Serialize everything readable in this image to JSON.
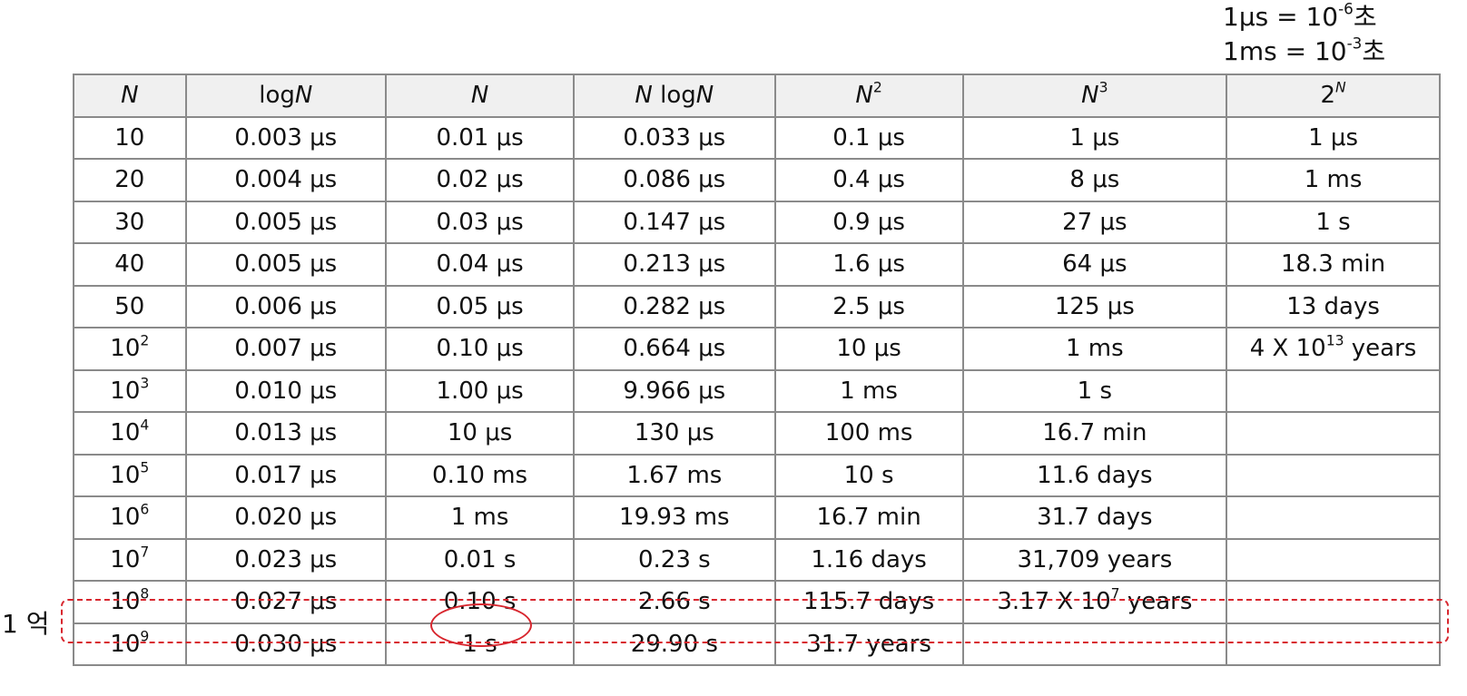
{
  "legend": {
    "lines": [
      {
        "prefix": "1μs = 10",
        "exp": "-6",
        "suffix": "초"
      },
      {
        "prefix": "1ms = 10",
        "exp": "-3",
        "suffix": "초"
      }
    ]
  },
  "table": {
    "headers": [
      {
        "base": "N",
        "exp": ""
      },
      {
        "pre": "log",
        "base": "N",
        "exp": ""
      },
      {
        "base": "N",
        "exp": ""
      },
      {
        "base": "N",
        "post": " log",
        "base2": "N",
        "exp": ""
      },
      {
        "base": "N",
        "exp": "2"
      },
      {
        "base": "N",
        "exp": "3"
      },
      {
        "pre": "2",
        "exp_italic": "N"
      }
    ],
    "rows": [
      {
        "n": {
          "base": "10",
          "exp": ""
        },
        "cells": [
          "0.003 μs",
          "0.01 μs",
          "0.033 μs",
          "0.1 μs",
          "1 μs",
          "1 μs"
        ]
      },
      {
        "n": {
          "base": "20",
          "exp": ""
        },
        "cells": [
          "0.004 μs",
          "0.02 μs",
          "0.086 μs",
          "0.4 μs",
          "8 μs",
          "1 ms"
        ]
      },
      {
        "n": {
          "base": "30",
          "exp": ""
        },
        "cells": [
          "0.005 μs",
          "0.03 μs",
          "0.147 μs",
          "0.9 μs",
          "27 μs",
          "1 s"
        ]
      },
      {
        "n": {
          "base": "40",
          "exp": ""
        },
        "cells": [
          "0.005 μs",
          "0.04 μs",
          "0.213 μs",
          "1.6 μs",
          "64 μs",
          "18.3 min"
        ]
      },
      {
        "n": {
          "base": "50",
          "exp": ""
        },
        "cells": [
          "0.006 μs",
          "0.05 μs",
          "0.282 μs",
          "2.5 μs",
          "125 μs",
          "13 days"
        ]
      },
      {
        "n": {
          "base": "10",
          "exp": "2"
        },
        "cells": [
          "0.007 μs",
          "0.10 μs",
          "0.664 μs",
          "10 μs",
          "1 ms",
          {
            "pre": "4 X 10",
            "exp": "13",
            "post": " years"
          }
        ]
      },
      {
        "n": {
          "base": "10",
          "exp": "3"
        },
        "cells": [
          "0.010 μs",
          "1.00 μs",
          "9.966 μs",
          "1 ms",
          "1 s",
          ""
        ]
      },
      {
        "n": {
          "base": "10",
          "exp": "4"
        },
        "cells": [
          "0.013 μs",
          "10 μs",
          "130 μs",
          "100 ms",
          "16.7 min",
          ""
        ]
      },
      {
        "n": {
          "base": "10",
          "exp": "5"
        },
        "cells": [
          "0.017 μs",
          "0.10 ms",
          "1.67 ms",
          "10 s",
          "11.6 days",
          ""
        ]
      },
      {
        "n": {
          "base": "10",
          "exp": "6"
        },
        "cells": [
          "0.020 μs",
          "1 ms",
          "19.93 ms",
          "16.7 min",
          "31.7 days",
          ""
        ]
      },
      {
        "n": {
          "base": "10",
          "exp": "7"
        },
        "cells": [
          "0.023 μs",
          "0.01 s",
          "0.23 s",
          "1.16 days",
          "31,709 years",
          ""
        ]
      },
      {
        "n": {
          "base": "10",
          "exp": "8"
        },
        "cells": [
          "0.027 μs",
          "0.10 s",
          "2.66 s",
          "115.7 days",
          {
            "pre": "3.17 X 10",
            "exp": "7",
            "post": " years"
          },
          ""
        ]
      },
      {
        "n": {
          "base": "10",
          "exp": "9"
        },
        "cells": [
          "0.030 μs",
          "1 s",
          "29.90 s",
          "31.7 years",
          "",
          ""
        ]
      }
    ]
  },
  "annotation": {
    "side_label": "1 억",
    "highlight_color": "#d8262e"
  }
}
